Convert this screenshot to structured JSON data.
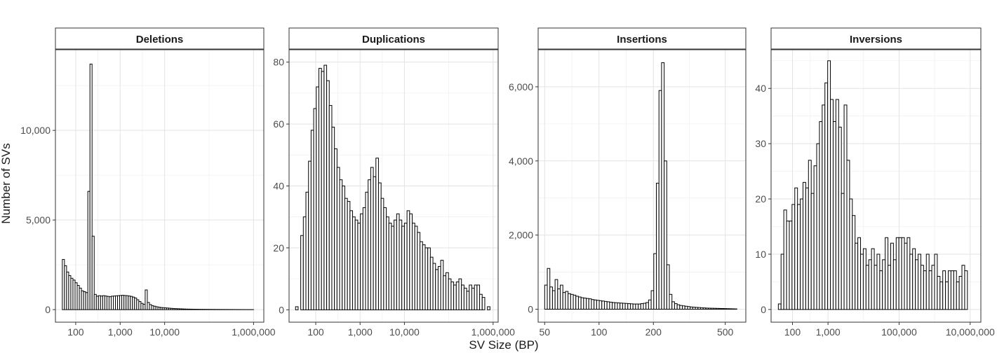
{
  "chart_data": {
    "type": "bar",
    "title": "",
    "xlabel": "SV Size (BP)",
    "ylabel": "Number of SVs",
    "x_scale": "log10",
    "facets": [
      {
        "title": "Deletions",
        "xlim": [
          35,
          1700000
        ],
        "ylim": [
          -700,
          14500
        ],
        "x_ticks": [
          100,
          1000,
          10000,
          1000000
        ],
        "x_tick_labels": [
          "100",
          "1,000",
          "10,000",
          "1,000,000"
        ],
        "y_ticks": [
          0,
          5000,
          10000
        ],
        "y_tick_labels": [
          "0",
          "5,000",
          "10,000"
        ],
        "x_start": 50,
        "x_end": 1000000,
        "values": [
          2800,
          2450,
          2100,
          1900,
          1750,
          1650,
          1500,
          1350,
          1200,
          1050,
          1000,
          950,
          6600,
          13700,
          4100,
          850,
          750,
          780,
          760,
          780,
          760,
          740,
          720,
          750,
          760,
          770,
          780,
          790,
          800,
          790,
          780,
          760,
          740,
          700,
          650,
          550,
          450,
          350,
          300,
          1100,
          400,
          280,
          220,
          190,
          160,
          140,
          120,
          110,
          100,
          90,
          80,
          70,
          60,
          55,
          50,
          45,
          40,
          35,
          30,
          28,
          26,
          24,
          22,
          20,
          18,
          17,
          16,
          15,
          14,
          13,
          12,
          11,
          10,
          10,
          9,
          9,
          8,
          8,
          7,
          7,
          6,
          6,
          5,
          5,
          4,
          4,
          3,
          3,
          3,
          2
        ]
      },
      {
        "title": "Duplications",
        "xlim": [
          25,
          1300000
        ],
        "ylim": [
          -4,
          84
        ],
        "x_ticks": [
          100,
          1000,
          10000,
          1000000
        ],
        "x_tick_labels": [
          "100",
          "1,000",
          "10,000",
          "1,000,000"
        ],
        "y_ticks": [
          0,
          20,
          40,
          60,
          80
        ],
        "y_tick_labels": [
          "0",
          "20",
          "40",
          "60",
          "80"
        ],
        "x_start": 35,
        "x_end": 850000,
        "values": [
          1,
          0,
          24,
          30,
          38,
          48,
          58,
          65,
          72,
          78,
          77,
          79,
          74,
          66,
          59,
          52,
          46,
          42,
          40,
          36,
          35,
          32,
          30,
          29,
          28,
          31,
          33,
          38,
          42,
          46,
          43,
          49,
          41,
          36,
          33,
          30,
          28,
          27,
          29,
          31,
          29,
          27,
          28,
          32,
          31,
          28,
          27,
          25,
          22,
          21,
          20,
          20,
          17,
          15,
          13,
          14,
          16,
          11,
          12,
          10,
          9,
          8,
          9,
          10,
          8,
          7,
          6,
          8,
          7,
          8,
          8,
          5,
          4,
          0,
          1
        ]
      },
      {
        "title": "Insertions",
        "xlim": [
          46,
          650
        ],
        "ylim": [
          -350,
          7000
        ],
        "x_ticks": [
          50,
          100,
          200,
          500
        ],
        "x_tick_labels": [
          "50",
          "100",
          "200",
          "500"
        ],
        "y_ticks": [
          0,
          2000,
          4000,
          6000
        ],
        "y_tick_labels": [
          "0",
          "2,000",
          "4,000",
          "6,000"
        ],
        "x_start": 50,
        "x_end": 580,
        "values": [
          650,
          1100,
          600,
          500,
          800,
          550,
          650,
          450,
          480,
          420,
          400,
          380,
          350,
          330,
          310,
          300,
          290,
          280,
          260,
          250,
          240,
          230,
          220,
          210,
          200,
          190,
          180,
          175,
          170,
          165,
          160,
          155,
          150,
          145,
          140,
          140,
          140,
          150,
          160,
          180,
          250,
          500,
          1500,
          3400,
          5900,
          6650,
          4000,
          1200,
          400,
          200,
          150,
          120,
          100,
          90,
          80,
          70,
          60,
          55,
          50,
          45,
          40,
          35,
          30,
          28,
          26,
          24,
          22,
          20,
          18,
          16,
          14,
          12,
          10,
          8
        ]
      },
      {
        "title": "Inversions",
        "xlim": [
          25,
          20000000
        ],
        "ylim": [
          -2.3,
          47
        ],
        "x_ticks": [
          100,
          1000,
          100000,
          10000000
        ],
        "x_tick_labels": [
          "100",
          "1,000",
          "100,000",
          "10,000,000"
        ],
        "y_ticks": [
          0,
          10,
          20,
          30,
          40
        ],
        "y_tick_labels": [
          "0",
          "10",
          "20",
          "30",
          "40"
        ],
        "x_start": 40,
        "x_end": 10000000,
        "values": [
          1,
          10,
          18,
          16,
          16,
          19,
          22,
          19,
          20,
          23,
          22,
          27,
          21,
          26,
          30,
          34,
          37,
          41,
          45,
          38,
          34,
          38,
          33,
          21,
          37,
          27,
          20,
          17,
          12,
          13,
          10,
          11,
          8,
          9,
          11,
          8,
          10,
          7,
          9,
          13,
          8,
          12,
          9,
          13,
          13,
          13,
          12,
          13,
          10,
          11,
          9,
          10,
          8,
          7,
          10,
          7,
          8,
          10,
          6,
          5,
          7,
          5,
          7,
          7,
          7,
          5,
          6,
          8,
          7,
          0
        ]
      }
    ]
  }
}
